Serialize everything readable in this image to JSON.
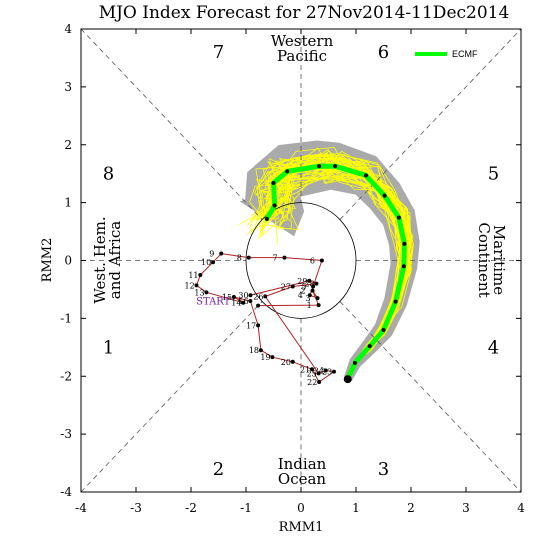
{
  "chart_data": {
    "type": "line",
    "title": "MJO Index Forecast for 27Nov2014-11Dec2014",
    "xlabel": "RMM1",
    "ylabel": "RMM2",
    "xlim": [
      -4,
      4
    ],
    "ylim": [
      -4,
      4
    ],
    "x_ticks": [
      "-4",
      "-3",
      "-2",
      "-1",
      "0",
      "1",
      "2",
      "3",
      "4"
    ],
    "y_ticks": [
      "-4",
      "-3",
      "-2",
      "-1",
      "0",
      "1",
      "2",
      "3",
      "4"
    ],
    "phase_numbers": [
      {
        "label": "1",
        "x": -3.5,
        "y": -1.5
      },
      {
        "label": "2",
        "x": -1.5,
        "y": -3.6
      },
      {
        "label": "3",
        "x": 1.5,
        "y": -3.6
      },
      {
        "label": "4",
        "x": 3.5,
        "y": -1.5
      },
      {
        "label": "5",
        "x": 3.5,
        "y": 1.5
      },
      {
        "label": "6",
        "x": 1.5,
        "y": 3.6
      },
      {
        "label": "7",
        "x": -1.5,
        "y": 3.6
      },
      {
        "label": "8",
        "x": -3.5,
        "y": 1.5
      }
    ],
    "region_labels": {
      "top": [
        "Western",
        "Pacific"
      ],
      "bottom": [
        "Indian",
        "Ocean"
      ],
      "left": [
        "West. Hem.",
        "and Africa"
      ],
      "right": [
        "Maritime",
        "Continent"
      ]
    },
    "start_label": "START",
    "legend": {
      "label": "ECMF",
      "color": "#00ff00",
      "position": "top-right"
    },
    "observed": {
      "color": "#b22222",
      "points": [
        {
          "label": "START",
          "x": -0.78,
          "y": -0.78
        },
        {
          "label": "1",
          "x": 0.32,
          "y": -0.77
        },
        {
          "label": "2",
          "x": 0.21,
          "y": -0.52
        },
        {
          "label": "3",
          "x": 0.3,
          "y": -0.65
        },
        {
          "label": "4",
          "x": 0.16,
          "y": -0.6
        },
        {
          "label": "5",
          "x": 0.22,
          "y": -0.45
        },
        {
          "label": "6",
          "x": 0.38,
          "y": 0.0
        },
        {
          "label": "7",
          "x": -0.3,
          "y": 0.05
        },
        {
          "label": "8",
          "x": -0.95,
          "y": 0.05
        },
        {
          "label": "9",
          "x": -1.45,
          "y": 0.12
        },
        {
          "label": "10",
          "x": -1.6,
          "y": -0.03
        },
        {
          "label": "11",
          "x": -1.83,
          "y": -0.25
        },
        {
          "label": "12",
          "x": -1.9,
          "y": -0.43
        },
        {
          "label": "13",
          "x": -1.72,
          "y": -0.55
        },
        {
          "label": "14",
          "x": -1.05,
          "y": -0.73
        },
        {
          "label": "15",
          "x": -1.22,
          "y": -0.63
        },
        {
          "label": "16",
          "x": -0.92,
          "y": -0.7
        },
        {
          "label": "17",
          "x": -0.78,
          "y": -1.12
        },
        {
          "label": "18",
          "x": -0.73,
          "y": -1.55
        },
        {
          "label": "19",
          "x": -0.52,
          "y": -1.67
        },
        {
          "label": "20",
          "x": -0.15,
          "y": -1.75
        },
        {
          "label": "21",
          "x": 0.2,
          "y": -1.88
        },
        {
          "label": "22",
          "x": 0.33,
          "y": -2.1
        },
        {
          "label": "23",
          "x": 0.6,
          "y": -1.92
        },
        {
          "label": "24",
          "x": 0.45,
          "y": -1.9
        },
        {
          "label": "25",
          "x": 0.32,
          "y": -1.95
        },
        {
          "label": "26",
          "x": -0.65,
          "y": -0.62
        },
        {
          "label": "27",
          "x": -0.15,
          "y": -0.45
        },
        {
          "label": "28",
          "x": 0.28,
          "y": -0.4
        },
        {
          "label": "29",
          "x": 0.15,
          "y": -0.35
        },
        {
          "label": "30",
          "x": -0.92,
          "y": -0.6
        }
      ]
    },
    "forecast_mean": {
      "name": "ECMF",
      "color": "#00ff00",
      "x": [
        0.85,
        0.98,
        1.25,
        1.5,
        1.72,
        1.87,
        1.88,
        1.78,
        1.52,
        1.18,
        0.62,
        0.33,
        -0.25,
        -0.5,
        -0.48,
        -0.62
      ],
      "y": [
        -2.05,
        -1.77,
        -1.48,
        -1.2,
        -0.71,
        -0.1,
        0.29,
        0.74,
        1.12,
        1.47,
        1.63,
        1.63,
        1.54,
        1.34,
        0.95,
        0.72
      ]
    },
    "spread": {
      "color": "#aaaaaa"
    },
    "ensemble": {
      "color": "#ffff00",
      "members": 51
    }
  }
}
